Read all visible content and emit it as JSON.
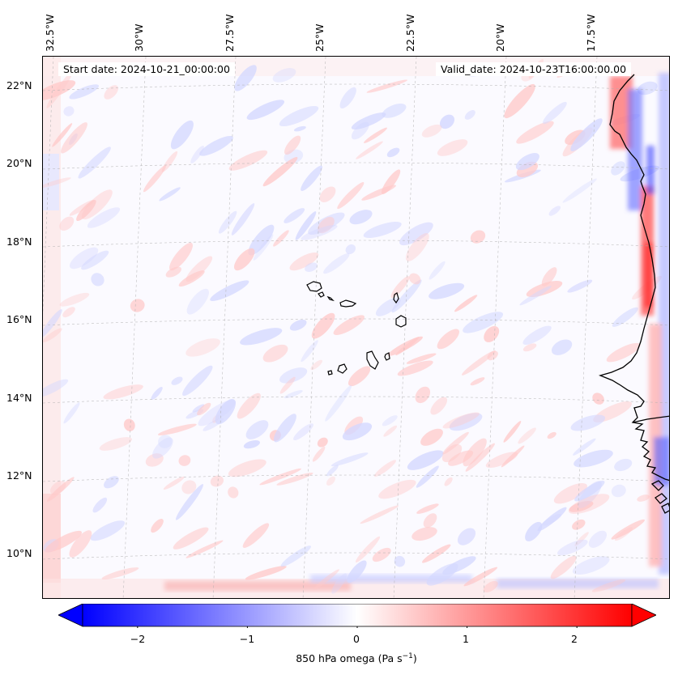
{
  "map": {
    "start_date": "Start date: 2024-10-21_00:00:00",
    "valid_date": "Valid_date: 2024-10-23T16:00:00.00",
    "lon_labels": [
      "32.5°W",
      "30°W",
      "27.5°W",
      "25°W",
      "22.5°W",
      "20°W",
      "17.5°W"
    ],
    "lat_labels": [
      "22°N",
      "20°N",
      "18°N",
      "16°N",
      "14°N",
      "12°N",
      "10°N"
    ],
    "colormap": {
      "min_color": "#0000ff",
      "mid_color": "#ffffff",
      "max_color": "#ff0000"
    },
    "colorbar": {
      "label": "850 hPa omega (Pa s",
      "label_sup": "−1",
      "label_close": ")",
      "ticks": [
        "−2",
        "−1",
        "0",
        "1",
        "2"
      ],
      "tick_values": [
        -2,
        -1,
        0,
        1,
        2
      ],
      "range": [
        -2.5,
        2.5
      ],
      "extend": "both"
    }
  }
}
